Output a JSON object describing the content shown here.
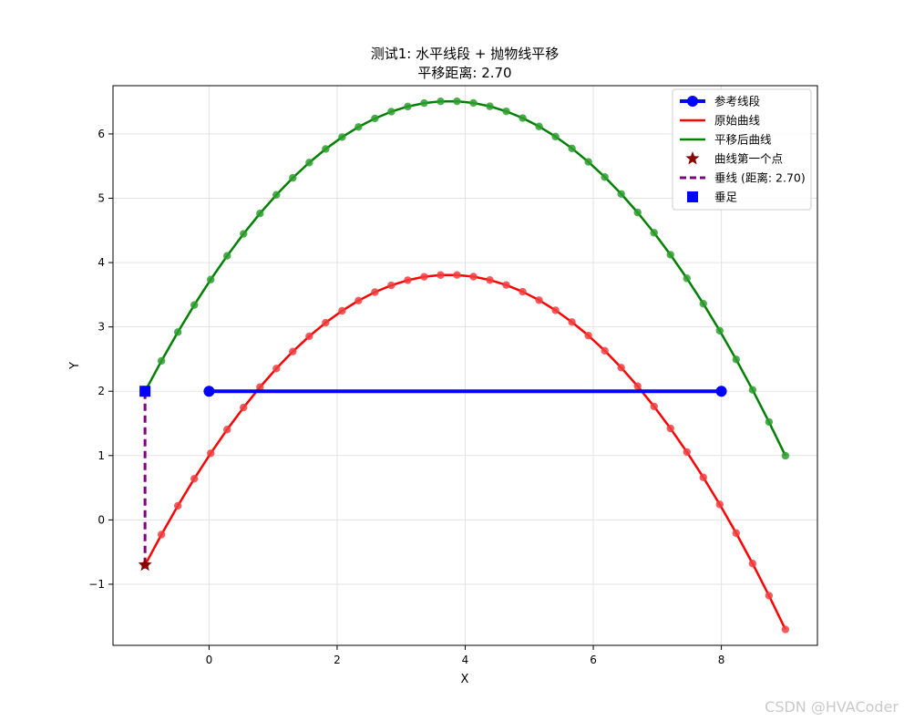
{
  "chart_data": {
    "type": "line",
    "title": "测试1: 水平线段 + 抛物线平移",
    "subtitle": "平移距离: 2.70",
    "xlabel": "X",
    "ylabel": "Y",
    "xlim": [
      -1.5,
      9.5
    ],
    "ylim": [
      -1.95,
      6.75
    ],
    "xticks": [
      0,
      2,
      4,
      6,
      8
    ],
    "yticks": [
      -1,
      0,
      1,
      2,
      3,
      4,
      5,
      6
    ],
    "grid": true,
    "legend_position": "top-right",
    "shift_distance": 2.7,
    "series": [
      {
        "name": "参考线段",
        "kind": "segment",
        "color": "#0000ff",
        "x": [
          0,
          8
        ],
        "y": [
          2,
          2
        ]
      },
      {
        "name": "原始曲线",
        "kind": "curve",
        "color": "#ff0000",
        "marker_color": "#f04040",
        "x_start": -1.0,
        "x_end": 9.0,
        "points": 40,
        "formula": "y = -0.2*(x-3.75)^2 + 3.81",
        "vertex": [
          3.75,
          3.81
        ]
      },
      {
        "name": "平移后曲线",
        "kind": "curve",
        "color": "#008000",
        "marker_color": "#2e9e2e",
        "x_start": -1.0,
        "x_end": 9.0,
        "points": 40,
        "formula": "y = -0.2*(x-3.75)^2 + 6.51",
        "vertex": [
          3.75,
          6.51
        ]
      },
      {
        "name": "曲线第一个点",
        "kind": "star",
        "color": "#8b0000",
        "x": [
          -1.0
        ],
        "y": [
          -0.7
        ]
      },
      {
        "name": "垂线 (距离: 2.70)",
        "kind": "dashed",
        "color": "#800080",
        "x": [
          -1.0,
          -1.0
        ],
        "y": [
          -0.7,
          2.0
        ]
      },
      {
        "name": "垂足",
        "kind": "square",
        "color": "#0000ff",
        "x": [
          -1.0
        ],
        "y": [
          2.0
        ]
      }
    ]
  },
  "watermark": "CSDN @HVACoder"
}
